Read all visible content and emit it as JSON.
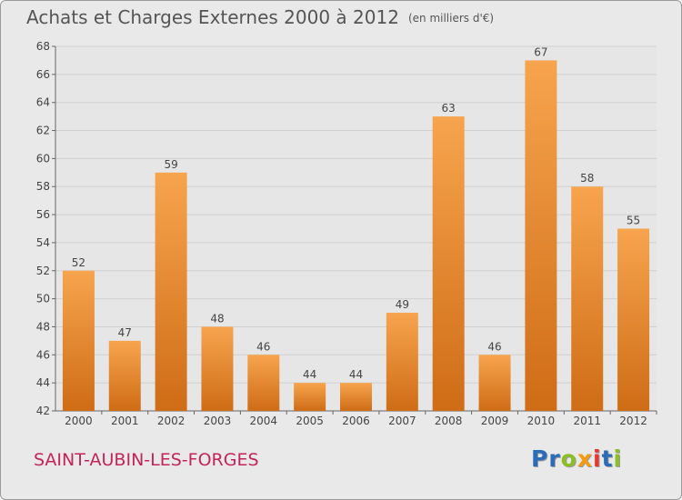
{
  "title": "Achats et Charges Externes 2000 à 2012",
  "subtitle": "(en milliers d'€)",
  "place": "SAINT-AUBIN-LES-FORGES",
  "logo": {
    "letters": [
      {
        "char": "P",
        "color": "#2b6cb8"
      },
      {
        "char": "r",
        "color": "#2b6cb8"
      },
      {
        "char": "o",
        "color": "#8cbf26"
      },
      {
        "char": "x",
        "color": "#f39c12"
      },
      {
        "char": "i",
        "color": "#e8372c"
      },
      {
        "char": "t",
        "color": "#2b6cb8"
      },
      {
        "char": "i",
        "color": "#8cbf26"
      }
    ]
  },
  "chart_data": {
    "type": "bar",
    "title": "Achats et Charges Externes 2000 à 2012",
    "subtitle": "(en milliers d'€)",
    "xlabel": "",
    "ylabel": "",
    "categories": [
      "2000",
      "2001",
      "2002",
      "2003",
      "2004",
      "2005",
      "2006",
      "2007",
      "2008",
      "2009",
      "2010",
      "2011",
      "2012"
    ],
    "values": [
      52,
      47,
      59,
      48,
      46,
      44,
      44,
      49,
      63,
      46,
      67,
      58,
      55
    ],
    "ylim": [
      42,
      68
    ],
    "yticks": [
      42,
      44,
      46,
      48,
      50,
      52,
      54,
      56,
      58,
      60,
      62,
      64,
      66,
      68
    ],
    "grid": true,
    "data_labels": true,
    "bar_color_top": "#f7a44e",
    "bar_color_bottom": "#cf6c16"
  }
}
